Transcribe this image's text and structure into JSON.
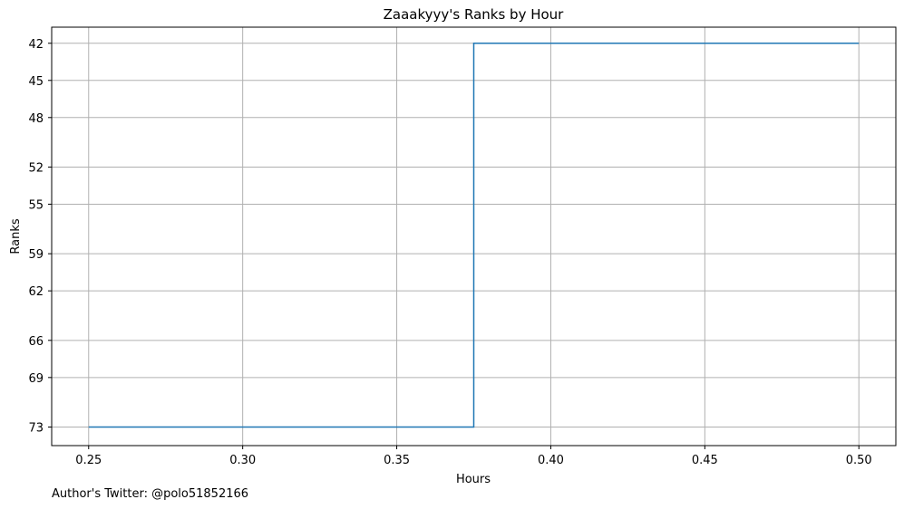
{
  "chart_data": {
    "type": "line",
    "drawstyle": "steps-post",
    "title": "Zaaakyyy's Ranks by Hour",
    "xlabel": "Hours",
    "ylabel": "Ranks",
    "xlim": [
      0.238,
      0.512
    ],
    "ylim": [
      74.5,
      40.7
    ],
    "y_inverted": true,
    "grid": true,
    "xticks": [
      0.25,
      0.3,
      0.35,
      0.4,
      0.45,
      0.5
    ],
    "xtick_labels": [
      "0.25",
      "0.30",
      "0.35",
      "0.40",
      "0.45",
      "0.50"
    ],
    "yticks": [
      42,
      45,
      48,
      52,
      55,
      59,
      62,
      66,
      69,
      73
    ],
    "ytick_labels": [
      "42",
      "45",
      "48",
      "52",
      "55",
      "59",
      "62",
      "66",
      "69",
      "73"
    ],
    "series": [
      {
        "x": [
          0.25,
          0.375,
          0.5
        ],
        "y": [
          73,
          42,
          42
        ],
        "color": "#1f77b4"
      }
    ]
  },
  "footer": {
    "text": "Author's Twitter: @polo51852166"
  }
}
